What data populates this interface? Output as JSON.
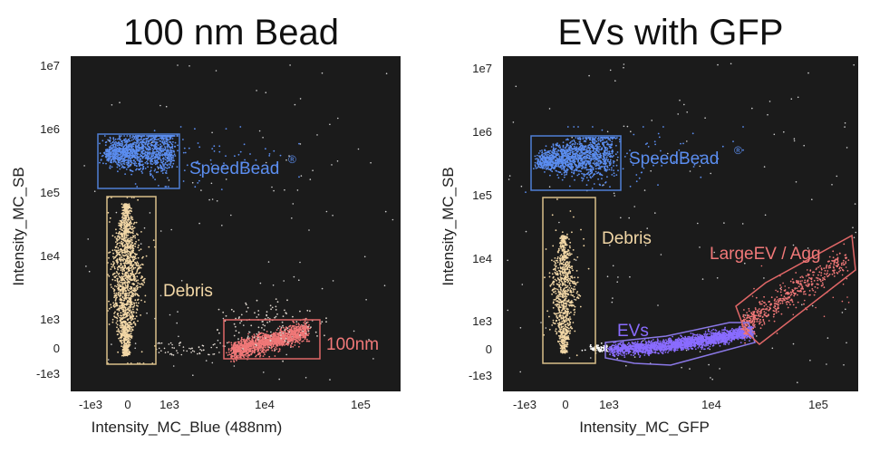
{
  "chart_data": [
    {
      "type": "scatter",
      "title": "100 nm Bead",
      "xlabel": "Intensity_MC_Blue (488nm)",
      "ylabel": "Intensity_MC_SB",
      "x_ticks": [
        "-1e3",
        "0",
        "1e3",
        "1e4",
        "1e5"
      ],
      "y_ticks": [
        "1e7",
        "1e6",
        "1e5",
        "1e4",
        "1e3",
        "0",
        "-1e3"
      ],
      "background": "#1b1b1b",
      "populations": [
        {
          "name": "SpeedBead",
          "label": "SpeedBead",
          "superscript": "®",
          "color": "#5b8def",
          "x_range": [
            "-1e3",
            "1e3"
          ],
          "y_range": [
            "1e5",
            "1e6"
          ]
        },
        {
          "name": "Debris",
          "label": "Debris",
          "superscript": "",
          "color": "#f2d7a6",
          "x_range": [
            "-1e3",
            "1e3"
          ],
          "y_range": [
            "-1e3",
            "1e5"
          ]
        },
        {
          "name": "100nm",
          "label": "100nm",
          "superscript": "",
          "color": "#f07878",
          "x_range": [
            "4e3",
            "5e4"
          ],
          "y_range": [
            "-1e3",
            "1e3"
          ]
        }
      ]
    },
    {
      "type": "scatter",
      "title": "EVs with GFP",
      "xlabel": "Intensity_MC_GFP",
      "ylabel": "Intensity_MC_SB",
      "x_ticks": [
        "-1e3",
        "0",
        "1e3",
        "1e4",
        "1e5"
      ],
      "y_ticks": [
        "1e7",
        "1e6",
        "1e5",
        "1e4",
        "1e3",
        "0",
        "-1e3"
      ],
      "background": "#1b1b1b",
      "populations": [
        {
          "name": "SpeedBead",
          "label": "SpeedBead",
          "superscript": "®",
          "color": "#5b8def",
          "x_range": [
            "-1e3",
            "1e3"
          ],
          "y_range": [
            "1e5",
            "1e6"
          ]
        },
        {
          "name": "Debris",
          "label": "Debris",
          "superscript": "",
          "color": "#f2d7a6",
          "x_range": [
            "-1e3",
            "1e3"
          ],
          "y_range": [
            "-1e3",
            "1e5"
          ]
        },
        {
          "name": "EVs",
          "label": "EVs",
          "superscript": "",
          "color": "#8a6cff",
          "x_range": [
            "1e3",
            "2e4"
          ],
          "y_range": [
            "-1e3",
            "1e3"
          ]
        },
        {
          "name": "LargeEV / Agg",
          "label": "LargeEV / Agg",
          "superscript": "",
          "color": "#f07878",
          "x_range": [
            "2e4",
            "2e5"
          ],
          "y_range": [
            "1e3",
            "2e4"
          ]
        }
      ]
    }
  ]
}
